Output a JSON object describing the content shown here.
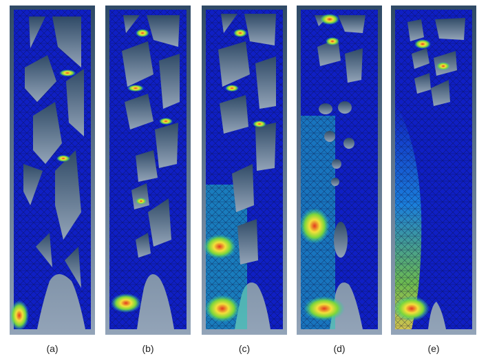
{
  "figure": {
    "panels": [
      {
        "id": "a",
        "caption": "(a)"
      },
      {
        "id": "b",
        "caption": "(b)"
      },
      {
        "id": "c",
        "caption": "(c)"
      },
      {
        "id": "d",
        "caption": "(d)"
      },
      {
        "id": "e",
        "caption": "(e)"
      }
    ]
  },
  "colors": {
    "background_gradient_top": "#2f4a66",
    "background_gradient_bottom": "#93a4b8",
    "low_stress": "#0f1fc4",
    "mid_low": "#1c8fe0",
    "mid": "#22c9b8",
    "mid_high": "#7dd63a",
    "high": "#f3e03a",
    "peak": "#e23a1f",
    "mesh_line": "#0a0f3a"
  }
}
